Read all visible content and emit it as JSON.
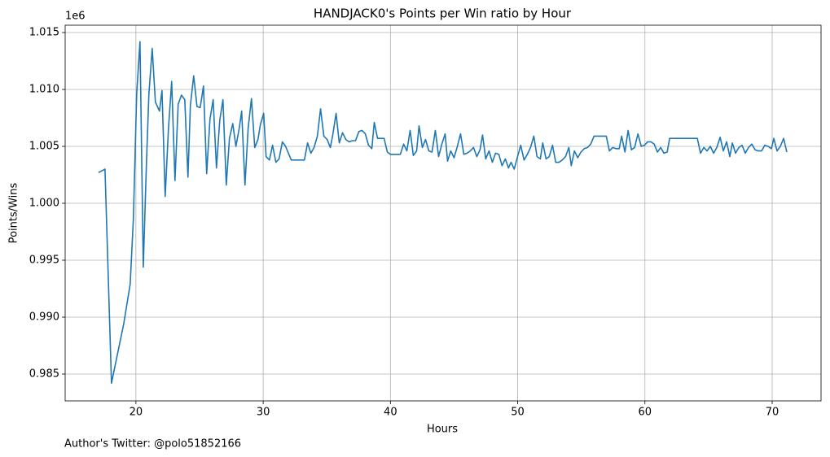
{
  "chart_data": {
    "type": "line",
    "title": "HANDJACK0's Points per Win ratio by Hour",
    "x_label": "Hours",
    "y_label": "Points/Wins",
    "y_offset_label": "1e6",
    "annotation": "Author's Twitter: @polo51852166",
    "grid": true,
    "xlim": [
      14.44,
      73.84
    ],
    "ylim": [
      982643,
      1015643
    ],
    "xticks": [
      20,
      30,
      40,
      50,
      60,
      70
    ],
    "yticks": [
      {
        "value": 985000,
        "label": "0.985"
      },
      {
        "value": 990000,
        "label": "0.990"
      },
      {
        "value": 995000,
        "label": "0.995"
      },
      {
        "value": 1000000,
        "label": "1.000"
      },
      {
        "value": 1005000,
        "label": "1.005"
      },
      {
        "value": 1010000,
        "label": "1.010"
      },
      {
        "value": 1015000,
        "label": "1.015"
      }
    ],
    "x": [
      17.06,
      17.57,
      18.08,
      19.04,
      19.55,
      19.8,
      20.06,
      20.32,
      20.58,
      20.83,
      21.02,
      21.28,
      21.53,
      21.85,
      22.05,
      22.3,
      22.56,
      22.81,
      23.07,
      23.32,
      23.58,
      23.84,
      24.09,
      24.28,
      24.54,
      24.8,
      25.05,
      25.31,
      25.56,
      25.82,
      26.07,
      26.33,
      26.59,
      26.84,
      27.1,
      27.35,
      27.61,
      27.86,
      28.12,
      28.31,
      28.57,
      28.82,
      29.08,
      29.34,
      29.59,
      29.78,
      30.04,
      30.23,
      30.49,
      30.74,
      31.0,
      31.25,
      31.51,
      31.76,
      32.02,
      32.21,
      33.24,
      33.49,
      33.75,
      34.0,
      34.26,
      34.51,
      34.77,
      35.03,
      35.28,
      35.47,
      35.73,
      35.98,
      36.24,
      36.5,
      36.75,
      37.0,
      37.26,
      37.52,
      37.77,
      38.03,
      38.28,
      38.54,
      38.73,
      38.99,
      39.5,
      39.76,
      40.01,
      40.78,
      41.04,
      41.29,
      41.55,
      41.8,
      42.06,
      42.25,
      42.51,
      42.76,
      43.02,
      43.27,
      43.53,
      43.79,
      44.04,
      44.3,
      44.49,
      44.74,
      45.0,
      45.26,
      45.51,
      45.77,
      46.02,
      46.28,
      46.53,
      46.79,
      47.04,
      47.24,
      47.49,
      47.75,
      48.01,
      48.26,
      48.52,
      48.77,
      49.03,
      49.28,
      49.48,
      49.73,
      49.99,
      50.24,
      50.5,
      50.76,
      51.01,
      51.27,
      51.52,
      51.78,
      51.97,
      52.23,
      52.48,
      52.74,
      52.99,
      53.25,
      53.5,
      53.76,
      54.02,
      54.21,
      54.46,
      54.72,
      54.97,
      55.23,
      55.49,
      55.74,
      56.0,
      56.96,
      57.21,
      57.47,
      57.72,
      57.98,
      58.17,
      58.43,
      58.68,
      58.94,
      59.19,
      59.45,
      59.71,
      59.96,
      60.22,
      60.47,
      60.73,
      60.98,
      61.24,
      61.49,
      61.75,
      61.94,
      64.12,
      64.37,
      64.63,
      64.88,
      65.14,
      65.4,
      65.65,
      65.91,
      66.16,
      66.42,
      66.67,
      66.87,
      67.12,
      67.38,
      67.63,
      67.89,
      68.14,
      68.4,
      68.66,
      68.91,
      69.17,
      69.42,
      69.68,
      69.94,
      70.13,
      70.38,
      70.64,
      70.9,
      71.15
    ],
    "series": [
      {
        "name": "Points/Wins",
        "color": "#1f77b4",
        "values": [
          1002700,
          1003000,
          984200,
          989400,
          992900,
          998600,
          1009600,
          1014200,
          994400,
          1003600,
          1009600,
          1013600,
          1008900,
          1008100,
          1009900,
          1000600,
          1006600,
          1010700,
          1002000,
          1008700,
          1009500,
          1009100,
          1002300,
          1008600,
          1011200,
          1008500,
          1008400,
          1010300,
          1002600,
          1007400,
          1009100,
          1003100,
          1007300,
          1009100,
          1001600,
          1005700,
          1007000,
          1005000,
          1006600,
          1008100,
          1001600,
          1006600,
          1009200,
          1004900,
          1005600,
          1006900,
          1007900,
          1004100,
          1003800,
          1005100,
          1003600,
          1003900,
          1005400,
          1005000,
          1004300,
          1003800,
          1003800,
          1005300,
          1004400,
          1004900,
          1005900,
          1008300,
          1005900,
          1005600,
          1004900,
          1006000,
          1007900,
          1005300,
          1006200,
          1005600,
          1005400,
          1005500,
          1005500,
          1006300,
          1006400,
          1006100,
          1005100,
          1004800,
          1007100,
          1005700,
          1005700,
          1004500,
          1004300,
          1004300,
          1005200,
          1004600,
          1006400,
          1004200,
          1004600,
          1006800,
          1004900,
          1005600,
          1004600,
          1004500,
          1006400,
          1004100,
          1005200,
          1006100,
          1003700,
          1004600,
          1004000,
          1005000,
          1006100,
          1004300,
          1004400,
          1004600,
          1004900,
          1004100,
          1004700,
          1006000,
          1003900,
          1004600,
          1003600,
          1004400,
          1004300,
          1003300,
          1003900,
          1003100,
          1003600,
          1003000,
          1004100,
          1005100,
          1003800,
          1004300,
          1004900,
          1005900,
          1004100,
          1003900,
          1005300,
          1003900,
          1004100,
          1005100,
          1003600,
          1003600,
          1003800,
          1004100,
          1004900,
          1003300,
          1004600,
          1004000,
          1004500,
          1004800,
          1004900,
          1005200,
          1005900,
          1005900,
          1004600,
          1004900,
          1004800,
          1004800,
          1005900,
          1004500,
          1006400,
          1004700,
          1004900,
          1006100,
          1005000,
          1005100,
          1005400,
          1005400,
          1005200,
          1004500,
          1004900,
          1004400,
          1004500,
          1005700,
          1005700,
          1004400,
          1004900,
          1004600,
          1005000,
          1004400,
          1004900,
          1005800,
          1004600,
          1005400,
          1004100,
          1005300,
          1004400,
          1004900,
          1005100,
          1004400,
          1004900,
          1005200,
          1004700,
          1004600,
          1004600,
          1005100,
          1005000,
          1004800,
          1005700,
          1004600,
          1005000,
          1005700,
          1004500
        ]
      }
    ]
  }
}
